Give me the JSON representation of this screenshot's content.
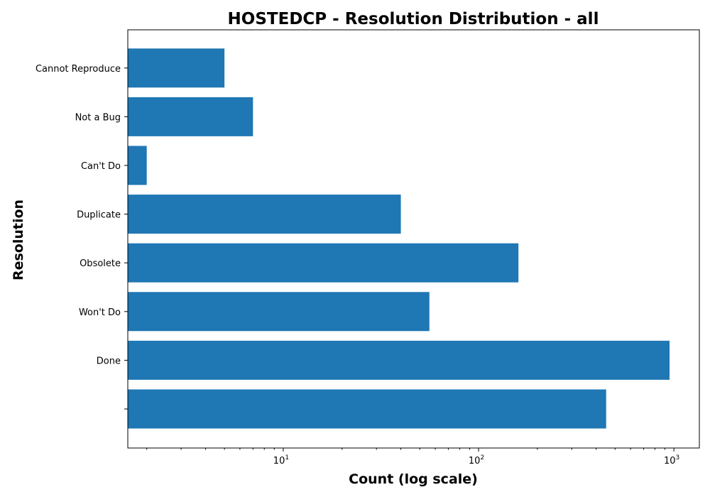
{
  "chart_data": {
    "type": "bar",
    "orientation": "horizontal",
    "title": "HOSTEDCP - Resolution Distribution - all",
    "xlabel": "Count (log scale)",
    "ylabel": "Resolution",
    "xscale": "log",
    "xlim": [
      1.6,
      1350
    ],
    "x_major_ticks": [
      {
        "value": 10,
        "base": "10",
        "exp": "1"
      },
      {
        "value": 100,
        "base": "10",
        "exp": "2"
      },
      {
        "value": 1000,
        "base": "10",
        "exp": "3"
      }
    ],
    "categories": [
      "",
      "Done",
      "Won't Do",
      "Obsolete",
      "Duplicate",
      "Can't Do",
      "Not a Bug",
      "Cannot Reproduce"
    ],
    "values": [
      450,
      950,
      56,
      160,
      40,
      2,
      7,
      5
    ],
    "bar_color": "#1f77b4",
    "grid": false,
    "legend": "none"
  }
}
